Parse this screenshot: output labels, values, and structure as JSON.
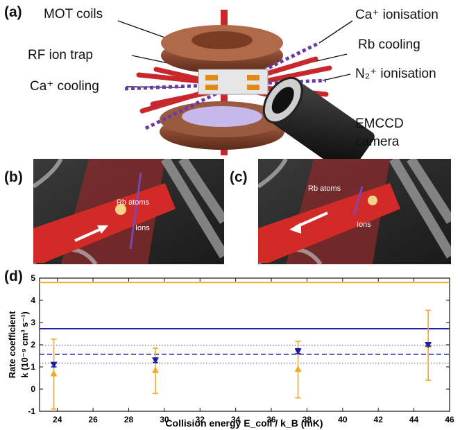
{
  "panel_a": {
    "letter": "(a)",
    "labels": {
      "mot_coils": "MOT coils",
      "rf_ion_trap": "RF ion trap",
      "ca_cooling": "Ca⁺ cooling",
      "ca_ionisation": "Ca⁺ ionisation",
      "rb_cooling": "Rb cooling",
      "n2_ionisation": "N₂⁺ ionisation",
      "emccd_line1": "EMCCD",
      "emccd_line2": "camera"
    }
  },
  "panel_b": {
    "letter": "(b)",
    "rb_atoms": "Rb atoms",
    "ions": "Ions"
  },
  "panel_c": {
    "letter": "(c)",
    "rb_atoms": "Rb atoms",
    "ions": "Ions"
  },
  "panel_d": {
    "letter": "(d)"
  },
  "colors": {
    "orange": "#f2a81d",
    "blue": "#1c1ca8",
    "purple": "#7a3ca8"
  },
  "chart_data": {
    "type": "scatter",
    "xlabel": "Collision energy  E_coll / k_B (mK)",
    "ylabel_line1": "Rate coefficient",
    "ylabel_line2": "k (10⁻⁹ cm³ s⁻¹)",
    "xlim": [
      23,
      46
    ],
    "ylim": [
      -1,
      5
    ],
    "xticks": [
      24,
      26,
      28,
      30,
      32,
      34,
      36,
      38,
      40,
      42,
      44,
      46
    ],
    "yticks": [
      -1,
      0,
      1,
      2,
      3,
      4,
      5
    ],
    "series": [
      {
        "marker": "triangle-up",
        "color": "#f2a81d",
        "points": [
          {
            "x": 23.8,
            "y": 0.7,
            "lo": -0.9,
            "hi": 2.25
          },
          {
            "x": 29.5,
            "y": 0.85,
            "lo": -0.2,
            "hi": 1.85
          },
          {
            "x": 37.5,
            "y": 0.9,
            "lo": -0.4,
            "hi": 2.15
          },
          {
            "x": 44.8,
            "y": 2.0,
            "lo": 0.4,
            "hi": 3.55
          }
        ]
      },
      {
        "marker": "triangle-down",
        "color": "#1c1ca8",
        "points": [
          {
            "x": 23.8,
            "y": 1.1,
            "lo": 1.0,
            "hi": 1.2
          },
          {
            "x": 29.5,
            "y": 1.3,
            "lo": 1.2,
            "hi": 1.4
          },
          {
            "x": 37.5,
            "y": 1.7,
            "lo": 1.6,
            "hi": 1.82
          },
          {
            "x": 44.8,
            "y": 2.0,
            "lo": 1.94,
            "hi": 2.07
          }
        ]
      }
    ],
    "hlines": [
      {
        "y": 4.8,
        "color": "#f2a81d",
        "style": "solid"
      },
      {
        "y": 2.72,
        "color": "#1c1ca8",
        "style": "solid"
      },
      {
        "y": 1.57,
        "color": "#1c1ca8",
        "style": "dashed"
      },
      {
        "y": 1.97,
        "color": "#7a3ca8",
        "style": "dotted"
      },
      {
        "y": 1.17,
        "color": "#7a3ca8",
        "style": "dotted"
      }
    ]
  }
}
